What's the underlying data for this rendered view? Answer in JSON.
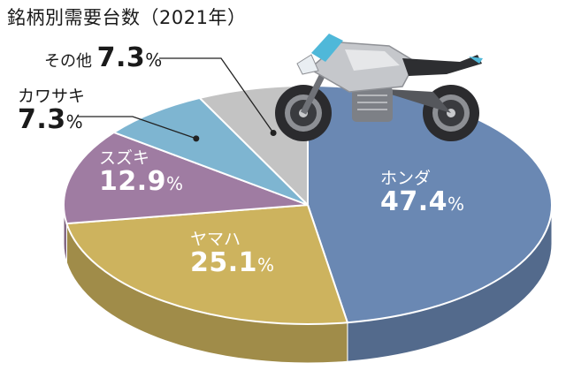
{
  "chart_data": {
    "type": "pie",
    "title": "銘柄別需要台数（2021年）",
    "unit": "%",
    "slices": [
      {
        "label": "ホンダ",
        "value": 47.4,
        "color": "#6a88b3"
      },
      {
        "label": "ヤマハ",
        "value": 25.1,
        "color": "#cdb35e"
      },
      {
        "label": "スズキ",
        "value": 12.9,
        "color": "#9f7ca2"
      },
      {
        "label": "カワサキ",
        "value": 7.3,
        "color": "#7eb5d1"
      },
      {
        "label": "その他",
        "value": 7.3,
        "color": "#c3c3c3"
      }
    ]
  }
}
